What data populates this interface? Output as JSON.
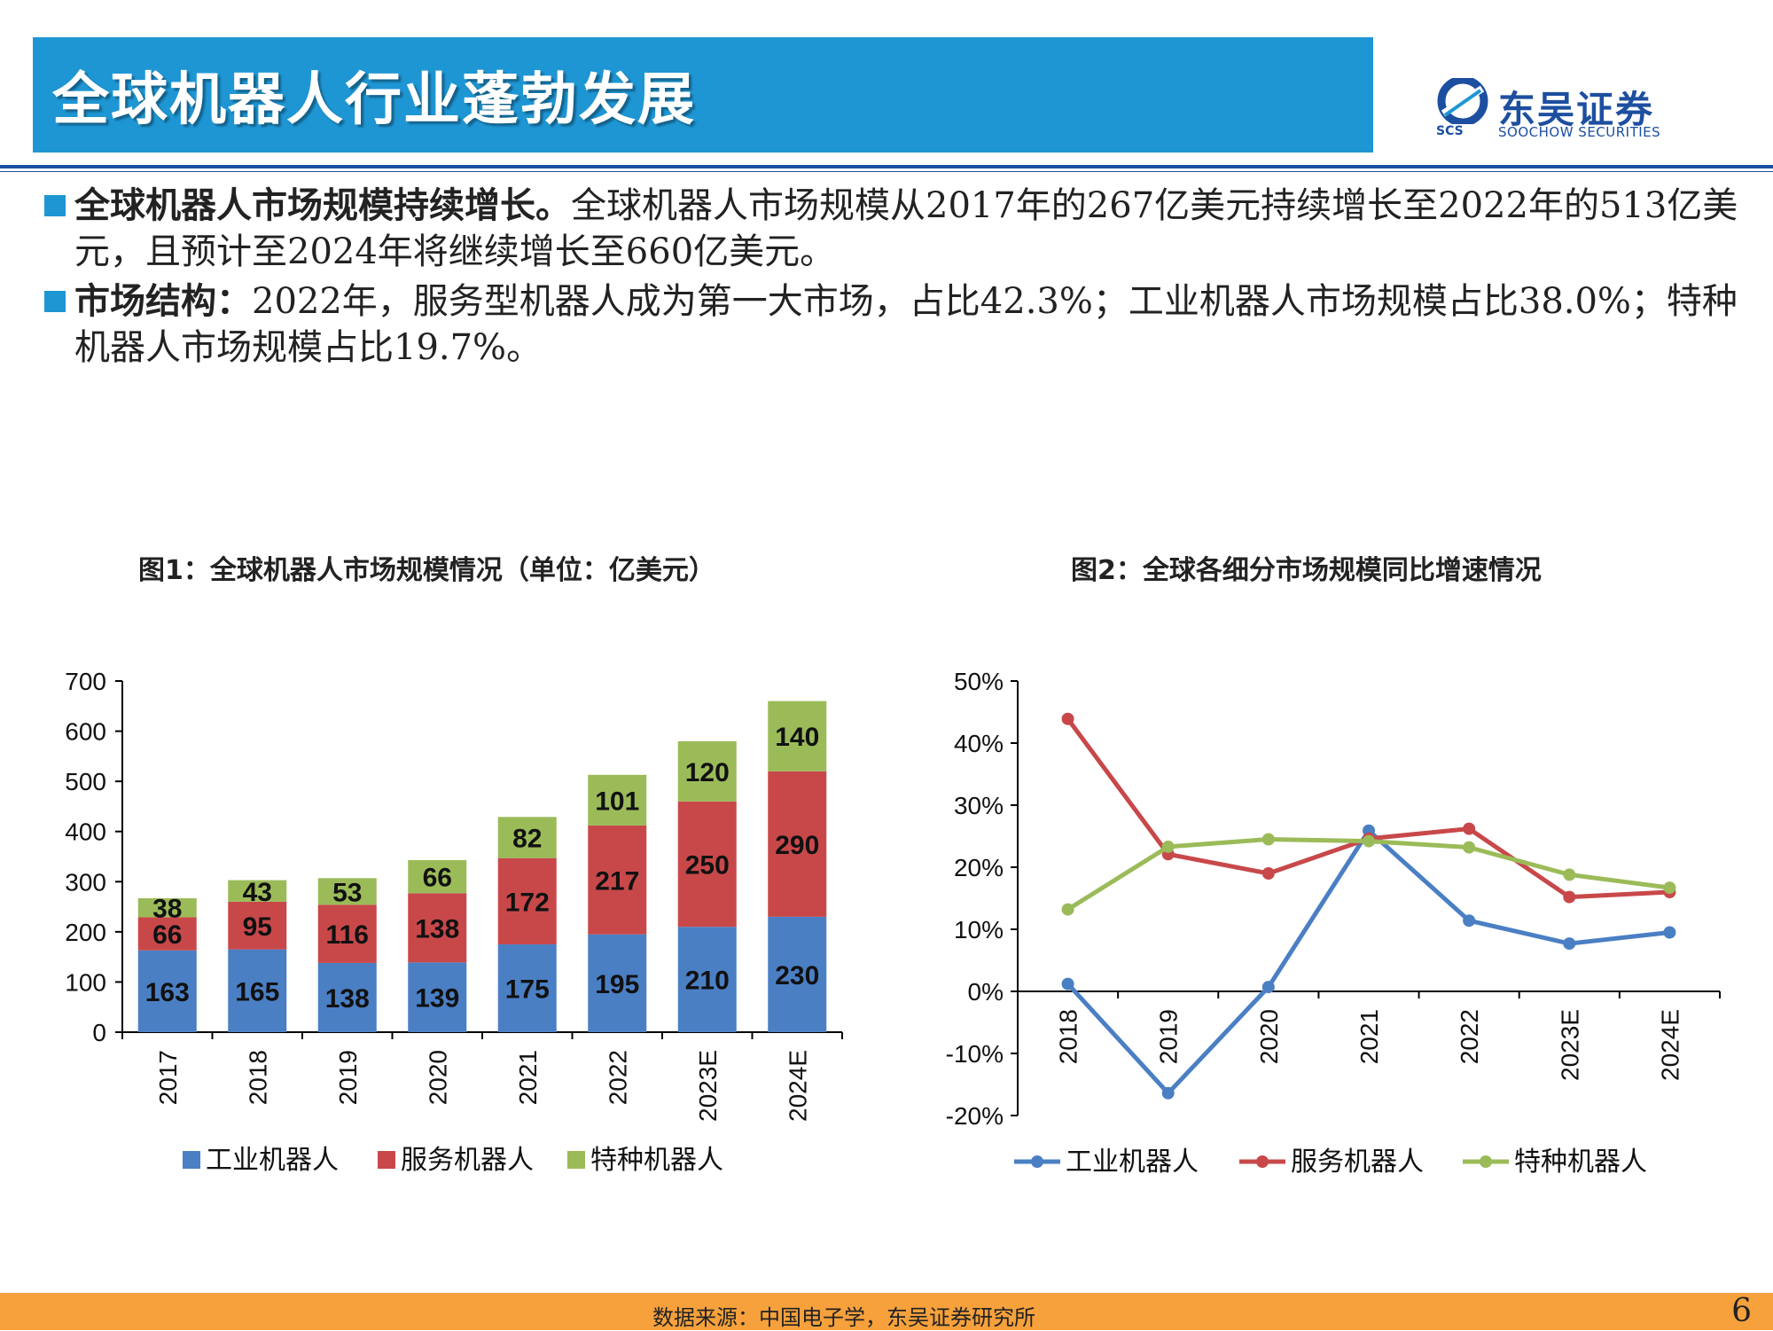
{
  "header": {
    "title": "全球机器人行业蓬勃发展",
    "logo_name": "东吴证券",
    "logo_sub": "SOOCHOW SECURITIES",
    "logo_abbr": "SCS"
  },
  "bullets": [
    {
      "lead": "全球机器人市场规模持续增长。",
      "text": "全球机器人市场规模从2017年的267亿美元持续增长至2022年的513亿美元，且预计至2024年将继续增长至660亿美元。"
    },
    {
      "lead": "市场结构：",
      "text": "2022年，服务型机器人成为第一大市场，占比42.3%；工业机器人市场规模占比38.0%；特种机器人市场规模占比19.7%。"
    }
  ],
  "colors": {
    "accent": "#1e96d4",
    "brand": "#1d4fa0",
    "industrial": "#4a7fc4",
    "service": "#c8484a",
    "special": "#9bbb59",
    "footer": "#f6a13c"
  },
  "chart_data": [
    {
      "type": "bar",
      "stacked": true,
      "title": "图1：全球机器人市场规模情况（单位：亿美元）",
      "categories": [
        "2017",
        "2018",
        "2019",
        "2020",
        "2021",
        "2022",
        "2023E",
        "2024E"
      ],
      "series": [
        {
          "name": "工业机器人",
          "values": [
            163,
            165,
            138,
            139,
            175,
            195,
            210,
            230
          ]
        },
        {
          "name": "服务机器人",
          "values": [
            66,
            95,
            116,
            138,
            172,
            217,
            250,
            290
          ]
        },
        {
          "name": "特种机器人",
          "values": [
            38,
            43,
            53,
            66,
            82,
            101,
            120,
            140
          ]
        }
      ],
      "ylim": [
        0,
        700
      ],
      "yticks": [
        0,
        100,
        200,
        300,
        400,
        500,
        600,
        700
      ],
      "legend": "bottom"
    },
    {
      "type": "line",
      "title": "图2：全球各细分市场规模同比增速情况",
      "categories": [
        "2018",
        "2019",
        "2020",
        "2021",
        "2022",
        "2023E",
        "2024E"
      ],
      "series": [
        {
          "name": "工业机器人",
          "values": [
            1.2,
            -16.4,
            0.7,
            25.9,
            11.4,
            7.7,
            9.5
          ]
        },
        {
          "name": "服务机器人",
          "values": [
            43.9,
            22.1,
            19.0,
            24.6,
            26.2,
            15.2,
            16.0
          ]
        },
        {
          "name": "特种机器人",
          "values": [
            13.2,
            23.3,
            24.5,
            24.2,
            23.2,
            18.8,
            16.7
          ]
        }
      ],
      "ylim": [
        -20,
        50
      ],
      "yticks": [
        "-20%",
        "-10%",
        "0%",
        "10%",
        "20%",
        "30%",
        "40%",
        "50%"
      ],
      "legend": "bottom"
    }
  ],
  "footer": {
    "source": "数据来源：中国电子学，东吴证券研究所",
    "page": "6"
  }
}
